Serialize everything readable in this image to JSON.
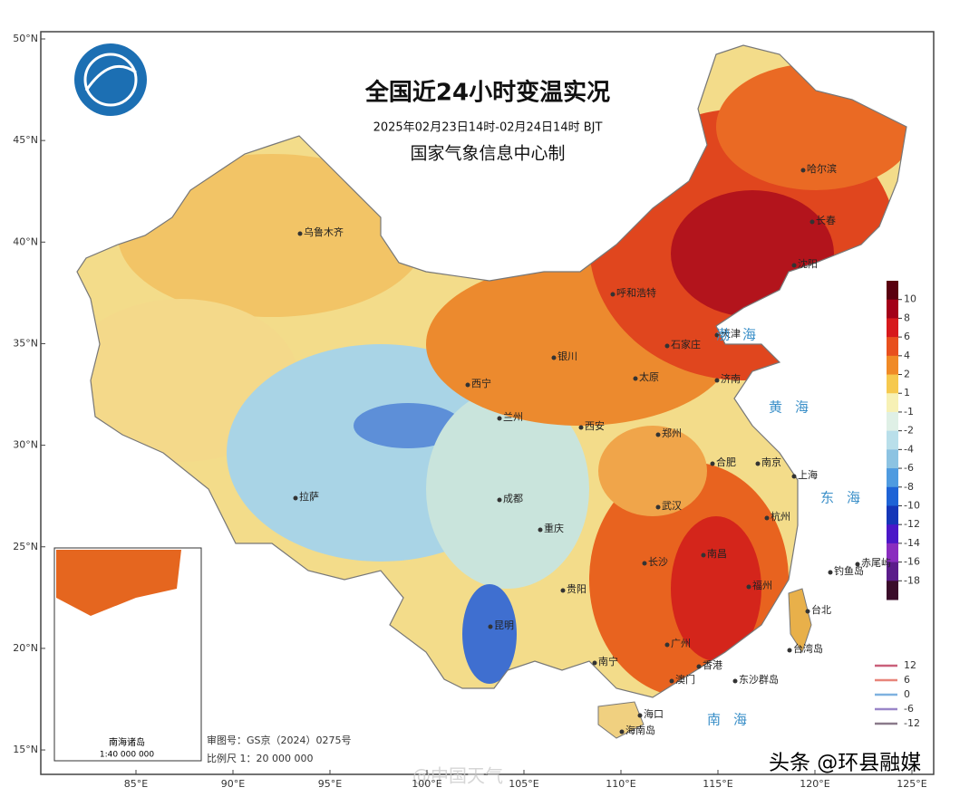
{
  "map": {
    "title": "全国近24小时变温实况",
    "subtitle": "2025年02月23日14时-02月24日14时  BJT",
    "credit": "国家气象信息中心制",
    "lat_ticks": [
      {
        "value": 50,
        "label": "50°N"
      },
      {
        "value": 45,
        "label": "45°N"
      },
      {
        "value": 40,
        "label": "40°N"
      },
      {
        "value": 35,
        "label": "35°N"
      },
      {
        "value": 30,
        "label": "30°N"
      },
      {
        "value": 25,
        "label": "25°N"
      },
      {
        "value": 20,
        "label": "20°N"
      },
      {
        "value": 15,
        "label": "15°N"
      }
    ],
    "lon_ticks": [
      {
        "value": 85,
        "label": "85°E"
      },
      {
        "value": 90,
        "label": "90°E"
      },
      {
        "value": 95,
        "label": "95°E"
      },
      {
        "value": 100,
        "label": "100°E"
      },
      {
        "value": 105,
        "label": "105°E"
      },
      {
        "value": 110,
        "label": "110°E"
      },
      {
        "value": 115,
        "label": "115°E"
      },
      {
        "value": 120,
        "label": "120°E"
      },
      {
        "value": 125,
        "label": "125°E"
      }
    ],
    "colorbar": {
      "ticks": [
        10,
        8,
        6,
        4,
        2,
        1,
        -1,
        -2,
        -4,
        -6,
        -8,
        -10,
        -12,
        -14,
        -16,
        -18
      ],
      "colors": [
        "#5a000f",
        "#a30018",
        "#d7191c",
        "#e8501e",
        "#f08a26",
        "#f6c94e",
        "#f7f1b5",
        "#dff0e6",
        "#b9dfea",
        "#8cc3e2",
        "#4f9be0",
        "#1e63d6",
        "#1536b8",
        "#4b17c8",
        "#8a2dbf",
        "#5b1c8a",
        "#3a0c2a"
      ]
    },
    "contour_legend": [
      {
        "value": 12,
        "color": "#c9607a"
      },
      {
        "value": 6,
        "color": "#e8857a"
      },
      {
        "value": 0,
        "color": "#7fb2e0"
      },
      {
        "value": -6,
        "color": "#9a86c8"
      },
      {
        "value": -12,
        "color": "#8a7a8a"
      }
    ],
    "cities": [
      "乌鲁木齐",
      "呼和浩特",
      "哈尔滨",
      "长春",
      "沈阳",
      "天津",
      "石家庄",
      "银川",
      "太原",
      "济南",
      "西宁",
      "兰州",
      "西安",
      "郑州",
      "合肥",
      "南京",
      "上海",
      "拉萨",
      "成都",
      "武汉",
      "重庆",
      "杭州",
      "长沙",
      "南昌",
      "贵阳",
      "福州",
      "台北",
      "昆明",
      "南宁",
      "广州",
      "香港",
      "澳门",
      "海口",
      "海南岛",
      "钓鱼岛",
      "赤尾屿",
      "台湾岛",
      "东沙群岛"
    ],
    "seas": [
      "渤海",
      "黄海",
      "东海",
      "南海"
    ],
    "inset": {
      "title": "南海诸岛",
      "scale": "1:40 000 000"
    },
    "footer": {
      "approval": "审图号：GS京（2024）0275号",
      "scale": "比例尺 1：20 000 000"
    },
    "watermarks": [
      "@中国天气",
      "头条 @环县融媒"
    ]
  }
}
